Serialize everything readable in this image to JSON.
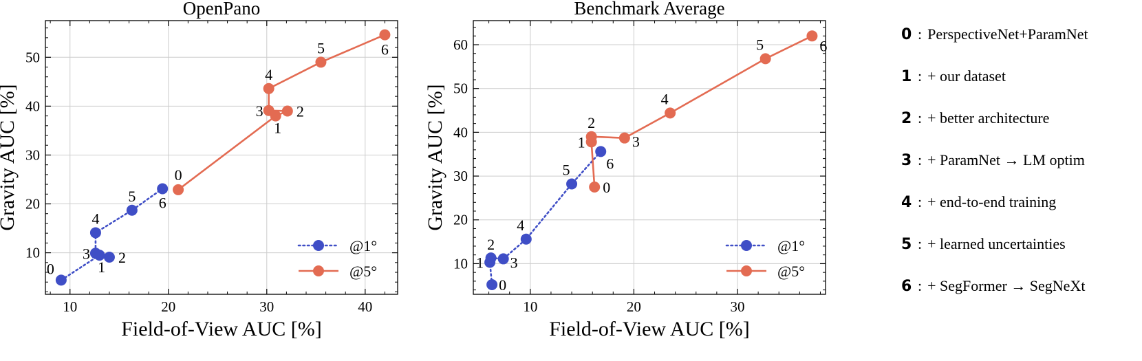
{
  "chart_data": [
    {
      "type": "line",
      "title": "OpenPano",
      "xlabel": "Field-of-View AUC [%]",
      "ylabel": "Gravity AUC [%]",
      "xlim": [
        7.5,
        43.3
      ],
      "ylim": [
        1.5,
        57.5
      ],
      "xticks": [
        10,
        20,
        30,
        40
      ],
      "yticks": [
        10,
        20,
        30,
        40,
        50
      ],
      "legend_position": "lower-right",
      "series": [
        {
          "name": "@1°",
          "style": "dotted",
          "color": "#3f4ec6",
          "points": [
            {
              "label": "0",
              "x": 9.1,
              "y": 4.4
            },
            {
              "label": "1",
              "x": 13.0,
              "y": 9.5
            },
            {
              "label": "2",
              "x": 14.0,
              "y": 9.1
            },
            {
              "label": "3",
              "x": 12.6,
              "y": 9.9
            },
            {
              "label": "4",
              "x": 12.6,
              "y": 14.1
            },
            {
              "label": "5",
              "x": 16.3,
              "y": 18.7
            },
            {
              "label": "6",
              "x": 19.4,
              "y": 23.1
            }
          ]
        },
        {
          "name": "@5°",
          "style": "solid",
          "color": "#e36b52",
          "points": [
            {
              "label": "0",
              "x": 21.0,
              "y": 22.9
            },
            {
              "label": "1",
              "x": 30.9,
              "y": 38.0
            },
            {
              "label": "2",
              "x": 32.1,
              "y": 39.0
            },
            {
              "label": "3",
              "x": 30.2,
              "y": 39.1
            },
            {
              "label": "4",
              "x": 30.2,
              "y": 43.6
            },
            {
              "label": "5",
              "x": 35.5,
              "y": 49.0
            },
            {
              "label": "6",
              "x": 42.0,
              "y": 54.6
            }
          ]
        }
      ]
    },
    {
      "type": "line",
      "title": "Benchmark Average",
      "xlabel": "Field-of-View AUC [%]",
      "ylabel": "Gravity AUC [%]",
      "xlim": [
        4.5,
        38.5
      ],
      "ylim": [
        3.0,
        65.5
      ],
      "xticks": [
        10,
        20,
        30
      ],
      "yticks": [
        10,
        20,
        30,
        40,
        50,
        60
      ],
      "legend_position": "lower-right",
      "series": [
        {
          "name": "@1°",
          "style": "dotted",
          "color": "#3f4ec6",
          "points": [
            {
              "label": "0",
              "x": 6.3,
              "y": 5.2
            },
            {
              "label": "1",
              "x": 6.1,
              "y": 10.3
            },
            {
              "label": "2",
              "x": 6.2,
              "y": 11.3
            },
            {
              "label": "3",
              "x": 7.4,
              "y": 11.1
            },
            {
              "label": "4",
              "x": 9.6,
              "y": 15.6
            },
            {
              "label": "5",
              "x": 14.0,
              "y": 28.2
            },
            {
              "label": "6",
              "x": 16.8,
              "y": 35.6
            }
          ]
        },
        {
          "name": "@5°",
          "style": "solid",
          "color": "#e36b52",
          "points": [
            {
              "label": "0",
              "x": 16.2,
              "y": 27.5
            },
            {
              "label": "1",
              "x": 15.9,
              "y": 37.8
            },
            {
              "label": "2",
              "x": 15.9,
              "y": 39.0
            },
            {
              "label": "3",
              "x": 19.1,
              "y": 38.7
            },
            {
              "label": "4",
              "x": 23.5,
              "y": 44.4
            },
            {
              "label": "5",
              "x": 32.7,
              "y": 56.8
            },
            {
              "label": "6",
              "x": 37.2,
              "y": 62.0
            }
          ]
        }
      ]
    }
  ],
  "methods": [
    {
      "num": "0",
      "text": "PerspectiveNet+ParamNet"
    },
    {
      "num": "1",
      "text": "+ our dataset"
    },
    {
      "num": "2",
      "text": "+ better architecture"
    },
    {
      "num": "3",
      "text": "+ ParamNet → LM optim"
    },
    {
      "num": "4",
      "text": "+ end-to-end training"
    },
    {
      "num": "5",
      "text": "+ learned uncertainties"
    },
    {
      "num": "6",
      "text": "+ SegFormer → SegNeXt"
    }
  ],
  "method_separator": ":"
}
